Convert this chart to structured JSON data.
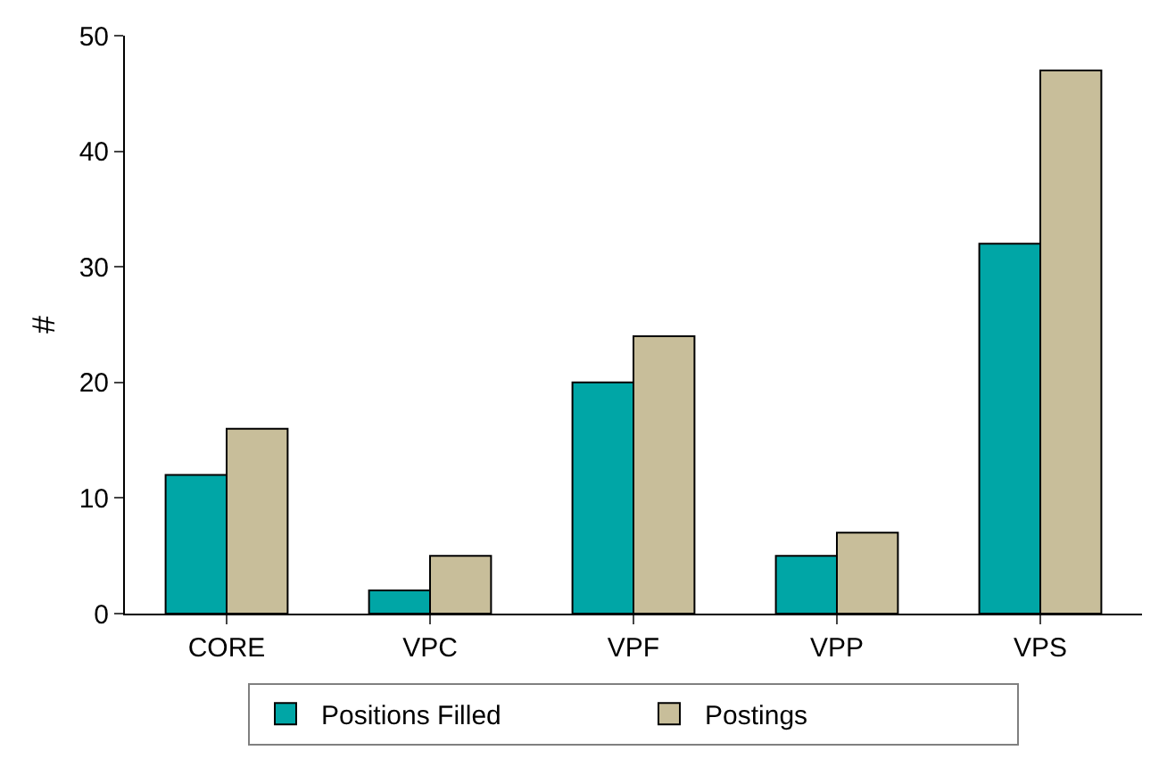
{
  "chart_data": {
    "type": "bar",
    "ylabel": "#",
    "categories": [
      "CORE",
      "VPC",
      "VPF",
      "VPP",
      "VPS"
    ],
    "series": [
      {
        "name": "Positions Filled",
        "color": "#00a6a6",
        "values": [
          12,
          2,
          20,
          5,
          32
        ]
      },
      {
        "name": "Postings",
        "color": "#c8be9a",
        "values": [
          16,
          5,
          24,
          7,
          47
        ]
      }
    ],
    "ylim": [
      0,
      50
    ],
    "yticks": [
      0,
      10,
      20,
      30,
      40,
      50
    ],
    "legend": "bottom"
  }
}
